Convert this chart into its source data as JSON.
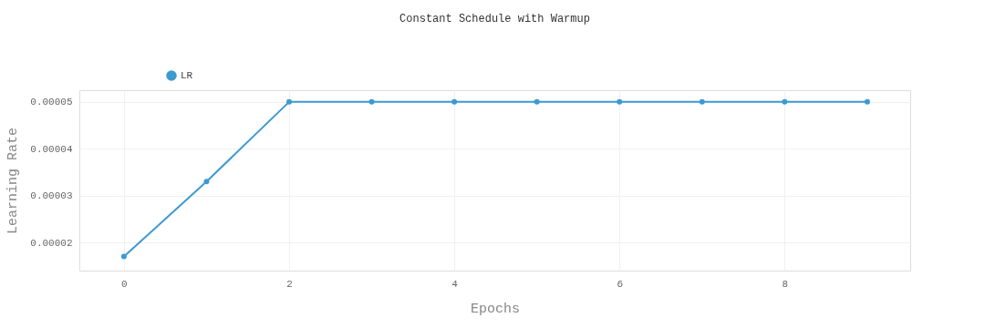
{
  "chart_data": {
    "type": "line",
    "title": "Constant Schedule with Warmup",
    "xlabel": "Epochs",
    "ylabel": "Learning Rate",
    "x": [
      0,
      1,
      2,
      3,
      4,
      5,
      6,
      7,
      8,
      9
    ],
    "series": [
      {
        "name": "LR",
        "color": "#3d9ad1",
        "values": [
          1.7e-05,
          3.3e-05,
          5e-05,
          5e-05,
          5e-05,
          5e-05,
          5e-05,
          5e-05,
          5e-05,
          5e-05
        ]
      }
    ],
    "xlim": [
      -0.54,
      9.52
    ],
    "xticks": [
      0,
      2,
      4,
      6,
      8
    ],
    "ylim": [
      1.4e-05,
      5.25e-05
    ],
    "yticks": [
      {
        "value": 2e-05,
        "label": "0.00002"
      },
      {
        "value": 3e-05,
        "label": "0.00003"
      },
      {
        "value": 4e-05,
        "label": "0.00004"
      },
      {
        "value": 5e-05,
        "label": "0.00005"
      }
    ],
    "grid": true,
    "legend": "top left",
    "marker": "circle",
    "line_style": "solid"
  }
}
